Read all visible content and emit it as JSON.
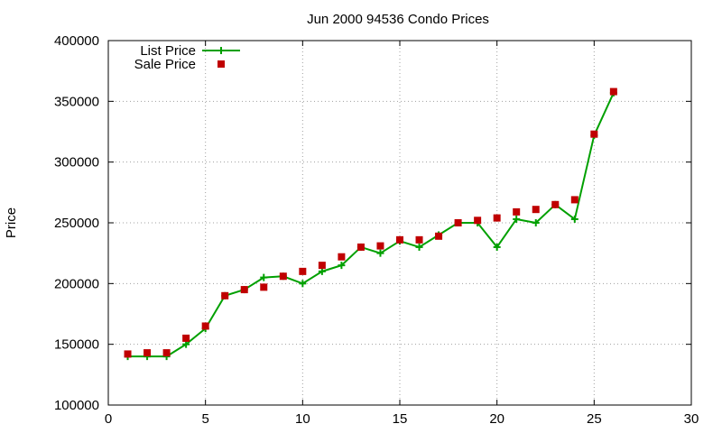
{
  "chart_data": {
    "type": "line",
    "title": "Jun 2000 94536 Condo Prices",
    "xlabel": "",
    "ylabel": "Price",
    "xlim": [
      0,
      30
    ],
    "ylim": [
      100000,
      400000
    ],
    "x_ticks": [
      "0",
      "5",
      "10",
      "15",
      "20",
      "25",
      "30"
    ],
    "y_ticks": [
      "100000",
      "150000",
      "200000",
      "250000",
      "300000",
      "350000",
      "400000"
    ],
    "grid": true,
    "legend_position": "top-left",
    "series": [
      {
        "name": "List Price",
        "style": "line-with-plus-markers",
        "color": "#00a000",
        "x": [
          1,
          2,
          3,
          4,
          5,
          6,
          7,
          8,
          9,
          10,
          11,
          12,
          13,
          14,
          15,
          16,
          17,
          18,
          19,
          20,
          21,
          22,
          23,
          24,
          25,
          26
        ],
        "y": [
          140000,
          140000,
          140000,
          150000,
          163000,
          190000,
          195000,
          205000,
          206000,
          200000,
          210000,
          215000,
          230000,
          225000,
          235000,
          230000,
          240000,
          250000,
          250000,
          230000,
          253000,
          250000,
          265000,
          253000,
          322000,
          357000
        ]
      },
      {
        "name": "Sale Price",
        "style": "square-markers",
        "color": "#c00000",
        "x": [
          1,
          2,
          3,
          4,
          5,
          6,
          7,
          8,
          9,
          10,
          11,
          12,
          13,
          14,
          15,
          16,
          17,
          18,
          19,
          20,
          21,
          22,
          23,
          24,
          25,
          26
        ],
        "y": [
          142000,
          143000,
          143000,
          155000,
          165000,
          190000,
          195000,
          197000,
          206000,
          210000,
          215000,
          222000,
          230000,
          231000,
          236000,
          236000,
          239000,
          250000,
          252000,
          254000,
          259000,
          261000,
          265000,
          269000,
          323000,
          358000
        ]
      }
    ]
  }
}
